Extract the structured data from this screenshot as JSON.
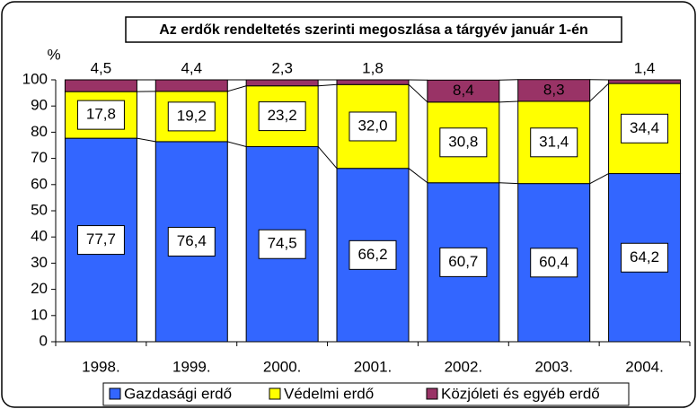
{
  "chart_data": {
    "type": "stacked-bar",
    "title": "Az erdők rendeltetés szerinti megoszlása a tárgyév január 1-én",
    "y_label": "%",
    "categories": [
      "1998.",
      "1999.",
      "2000.",
      "2001.",
      "2002.",
      "2003.",
      "2004."
    ],
    "series": [
      {
        "name": "Gazdasági erdő",
        "color": "#3366ff",
        "values": [
          77.7,
          76.4,
          74.5,
          66.2,
          60.7,
          60.4,
          64.2
        ],
        "value_labels": [
          "77,7",
          "76,4",
          "74,5",
          "66,2",
          "60,7",
          "60,4",
          "64,2"
        ]
      },
      {
        "name": "Védelmi erdő",
        "color": "#ffff00",
        "values": [
          17.8,
          19.2,
          23.2,
          32.0,
          30.8,
          31.4,
          34.4
        ],
        "value_labels": [
          "17,8",
          "19,2",
          "23,2",
          "32,0",
          "30,8",
          "31,4",
          "34,4"
        ]
      },
      {
        "name": "Közjóleti és egyéb erdő",
        "color": "#993366",
        "values": [
          4.5,
          4.4,
          2.3,
          1.8,
          8.4,
          8.3,
          1.4
        ],
        "value_labels": [
          "4,5",
          "4,4",
          "2,3",
          "1,8",
          "8,4",
          "8,3",
          "1,4"
        ]
      }
    ],
    "ylim": [
      0,
      100
    ],
    "yticks": [
      0,
      10,
      20,
      30,
      40,
      50,
      60,
      70,
      80,
      90,
      100
    ],
    "legend": "bottom"
  }
}
